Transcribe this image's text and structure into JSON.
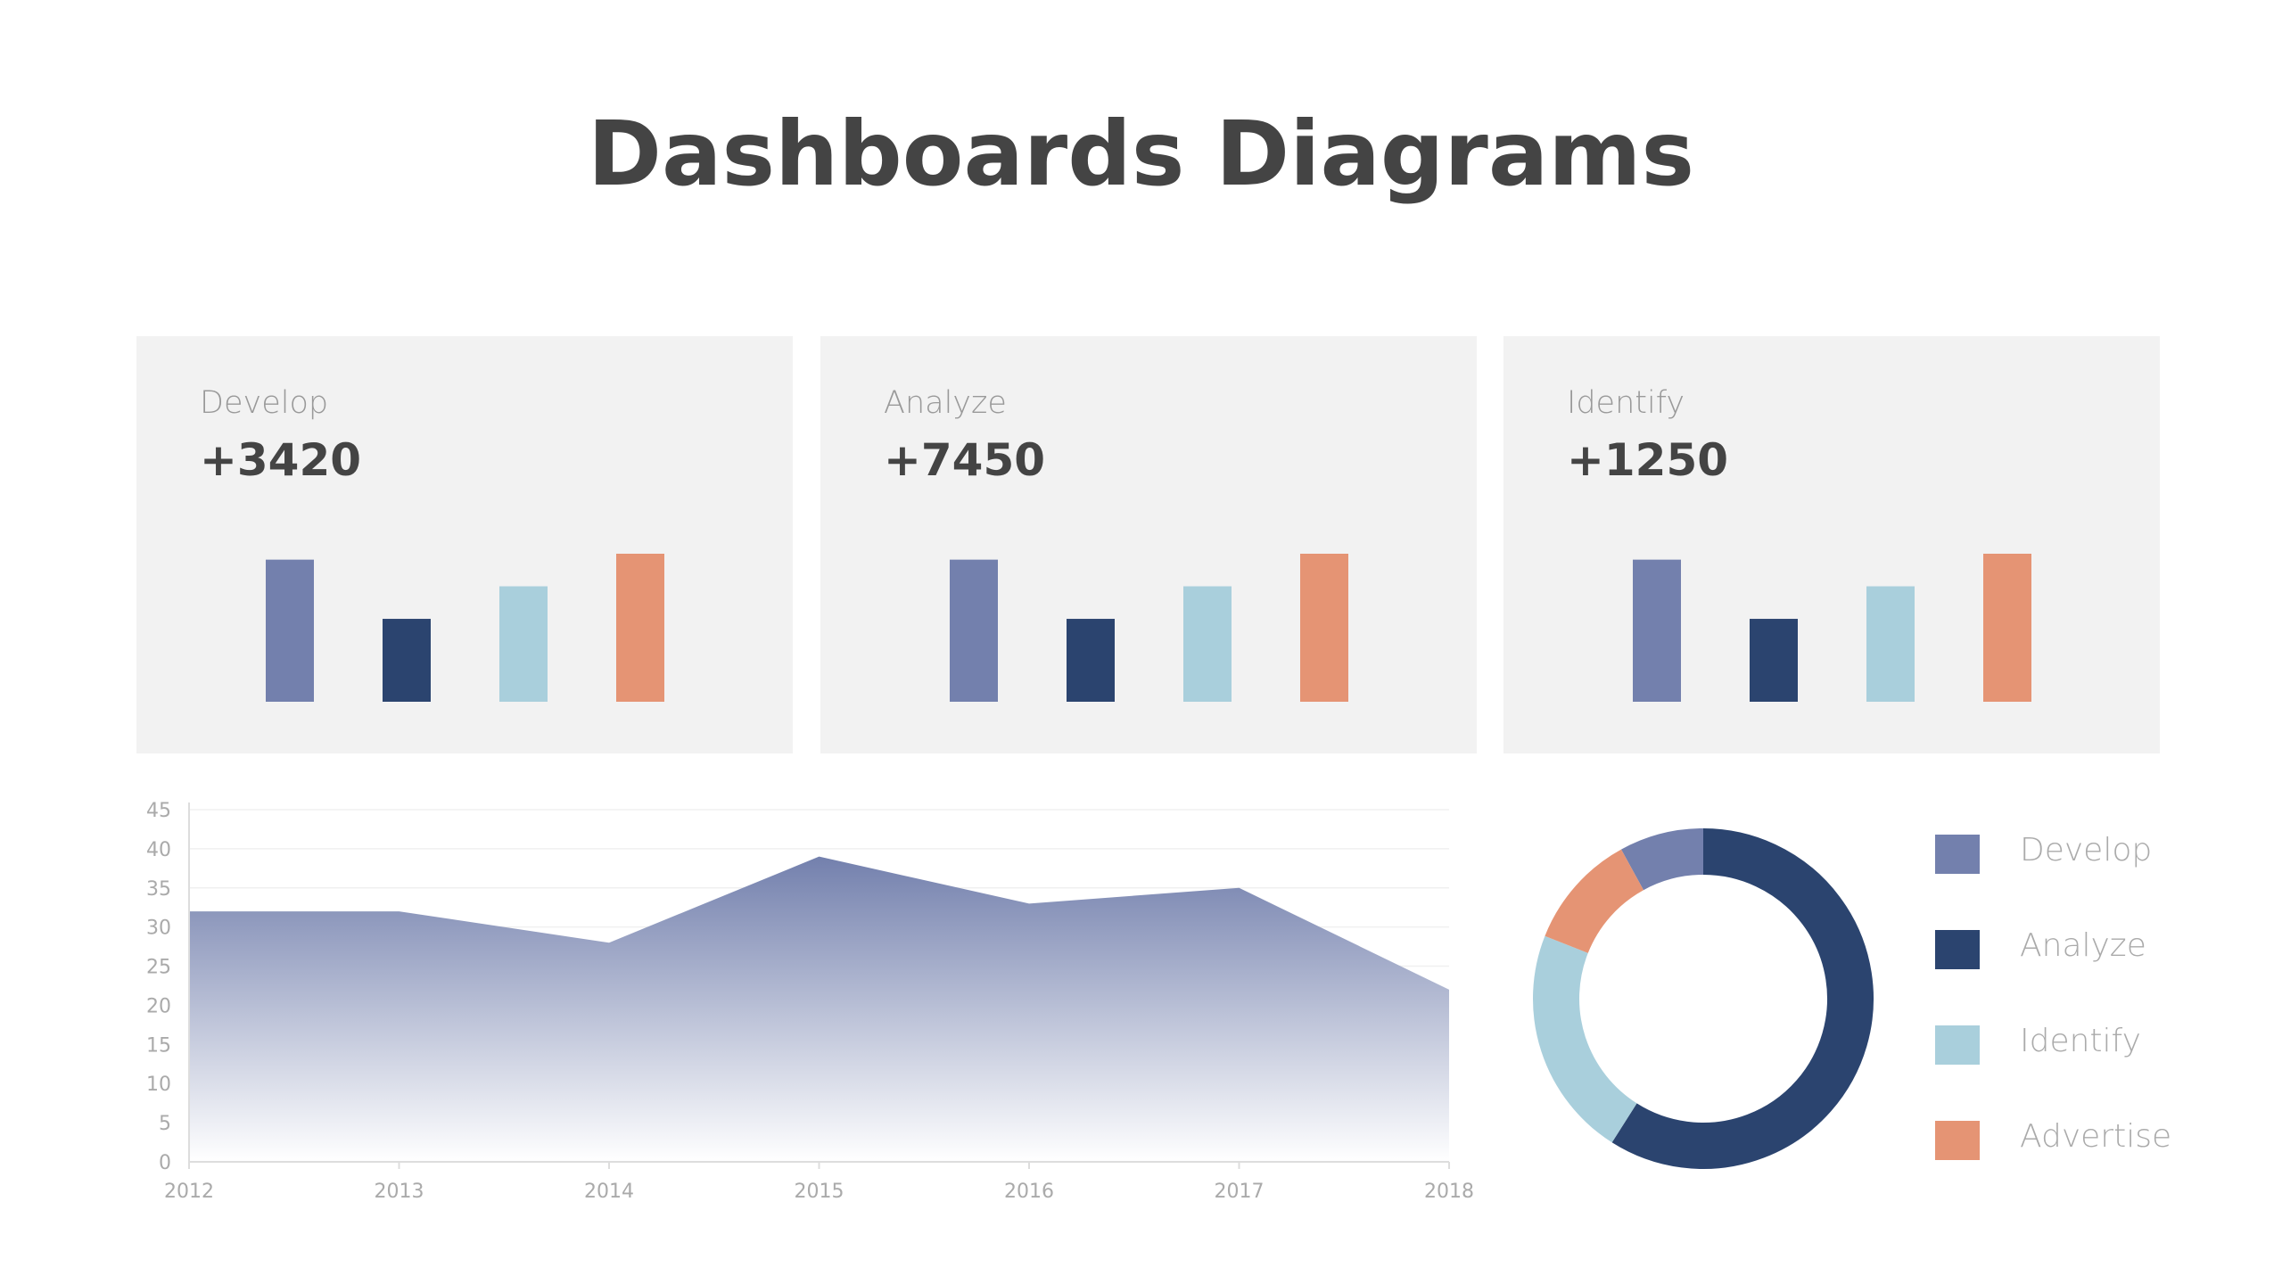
{
  "page": {
    "title": "Dashboards Diagrams"
  },
  "cards": [
    {
      "label": "Develop",
      "value": "+3420",
      "bars": [
        96,
        56,
        78,
        100
      ]
    },
    {
      "label": "Analyze",
      "value": "+7450",
      "bars": [
        96,
        56,
        78,
        100
      ]
    },
    {
      "label": "Identify",
      "value": "+1250",
      "bars": [
        96,
        56,
        78,
        100
      ]
    }
  ],
  "colors": {
    "develop": "#7380ad",
    "analyze": "#2b446f",
    "identify": "#a9cfdc",
    "advertise": "#e59474"
  },
  "chart_data": [
    {
      "type": "area",
      "x": [
        "2012",
        "2013",
        "2014",
        "2015",
        "2016",
        "2017",
        "2018"
      ],
      "series": [
        {
          "values": [
            32,
            32,
            28,
            39,
            33,
            35,
            22
          ]
        }
      ],
      "yticks": [
        0,
        5,
        10,
        15,
        20,
        25,
        30,
        35,
        40,
        45
      ],
      "ylim": [
        0,
        45
      ],
      "grid": true,
      "fill": "gradient #7380ad to white"
    },
    {
      "type": "pie",
      "donut": true,
      "categories": [
        "Develop",
        "Analyze",
        "Identify",
        "Advertise"
      ],
      "values": [
        8,
        59,
        22,
        11
      ],
      "legend": "right"
    }
  ]
}
